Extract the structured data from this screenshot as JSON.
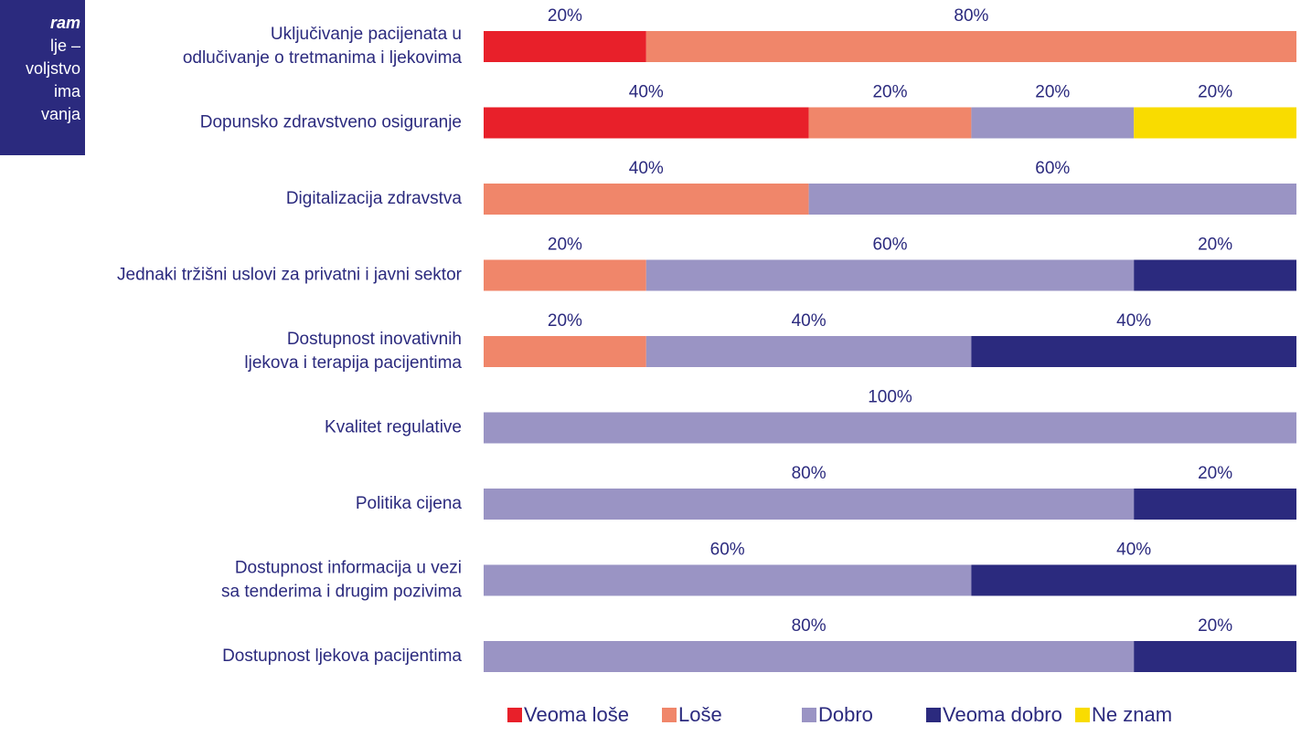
{
  "side_box": {
    "lines": [
      "ram",
      "lje –",
      "voljstvo",
      "ima",
      "vanja"
    ]
  },
  "chart_data": {
    "type": "stacked_barh",
    "categories": [
      "Uključivanje pacijenata u\nodlučivanje o tretmanima i ljekovima",
      "Dopunsko zdravstveno osiguranje",
      "Digitalizacija zdravstva",
      "Jednaki tržišni  uslovi za privatni i javni sektor",
      "Dostupnost inovativnih\nljekova i terapija pacijentima",
      "Kvalitet regulative",
      "Politika cijena",
      "Dostupnost informacija u vezi\nsa tenderima i drugim pozivima",
      "Dostupnost ljekova pacijentima"
    ],
    "xlim": [
      0,
      100
    ],
    "legend": "bottom",
    "series": [
      {
        "name": "Veoma loše",
        "color": "#e8202a",
        "values": [
          20,
          40,
          null,
          null,
          null,
          null,
          null,
          null,
          null
        ],
        "value_labels": [
          "20%",
          "40%",
          null,
          null,
          null,
          null,
          null,
          null,
          null
        ]
      },
      {
        "name": "Loše",
        "color": "#f0866a",
        "values": [
          80,
          20,
          40,
          20,
          20,
          null,
          null,
          null,
          null
        ],
        "value_labels": [
          "80%",
          "20%",
          "40%",
          "20%",
          "20%",
          null,
          null,
          null,
          null
        ]
      },
      {
        "name": "Dobro",
        "color": "#9a94c4",
        "values": [
          null,
          20,
          60,
          60,
          40,
          100,
          80,
          60,
          80
        ],
        "value_labels": [
          null,
          "20%",
          "60%",
          "60%",
          "40%",
          "100%",
          "80%",
          "60%",
          "80%"
        ]
      },
      {
        "name": "Veoma dobro",
        "color": "#2b2a7e",
        "values": [
          null,
          null,
          null,
          20,
          40,
          null,
          20,
          40,
          20
        ],
        "value_labels": [
          null,
          null,
          null,
          "20%",
          "40%",
          null,
          "20%",
          "40%",
          "20%"
        ]
      },
      {
        "name": "Ne znam",
        "color": "#f9dc00",
        "values": [
          null,
          20,
          null,
          null,
          null,
          null,
          null,
          null,
          null
        ],
        "value_labels": [
          null,
          "20%",
          null,
          null,
          null,
          null,
          null,
          null,
          null
        ]
      }
    ]
  }
}
